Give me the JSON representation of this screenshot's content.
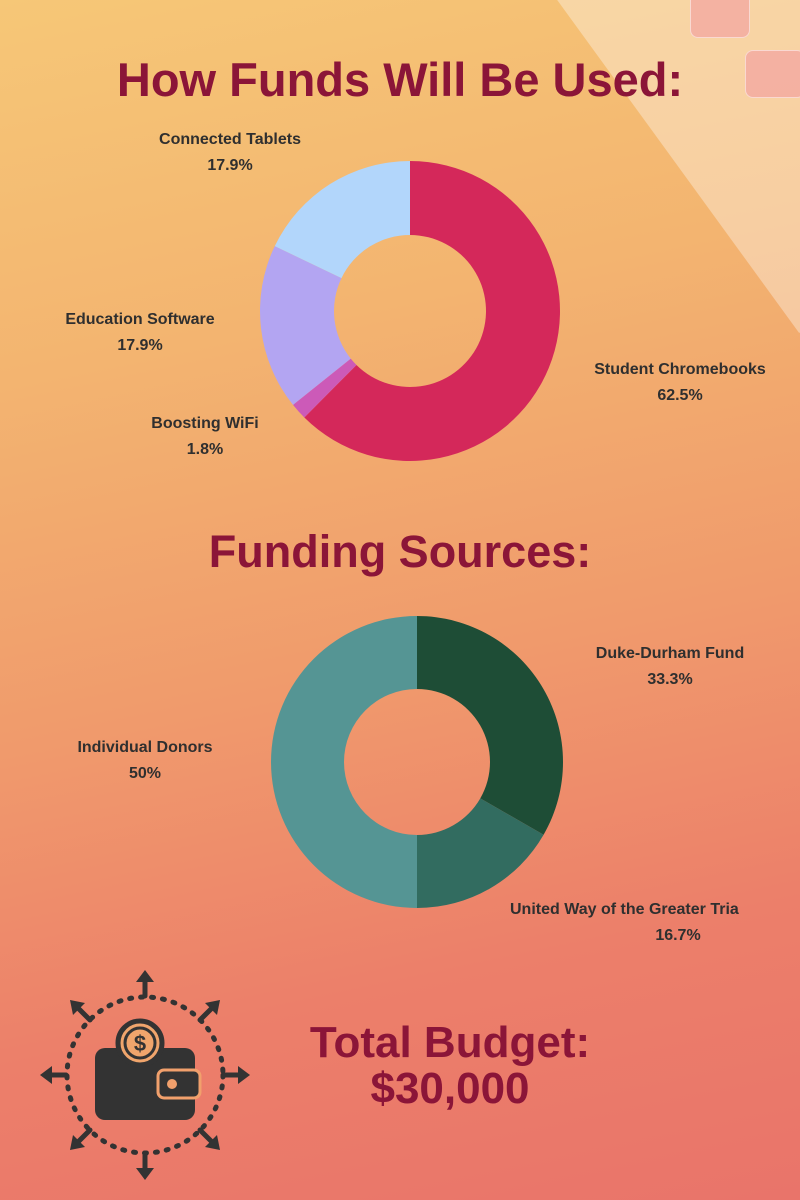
{
  "funds_title": "How Funds Will Be Used:",
  "sources_title": "Funding Sources:",
  "total": {
    "label": "Total Budget:",
    "amount": "$30,000"
  },
  "colors": {
    "title": "#8b1538",
    "text": "#2f2f2f"
  },
  "icon": "wallet-money-icon",
  "chart_data": [
    {
      "type": "pie",
      "style": "donut",
      "slices": [
        {
          "label": "Student Chromebooks",
          "value": 62.5,
          "display": "62.5%",
          "color": "#d4285a"
        },
        {
          "label": "Boosting WiFi",
          "value": 1.8,
          "display": "1.8%",
          "color": "#cc5ab8"
        },
        {
          "label": "Education Software",
          "value": 17.9,
          "display": "17.9%",
          "color": "#b3a5f2"
        },
        {
          "label": "Connected Tablets",
          "value": 17.9,
          "display": "17.9%",
          "color": "#b2d6fb"
        }
      ]
    },
    {
      "type": "pie",
      "style": "donut",
      "slices": [
        {
          "label": "Duke-Durham Fund",
          "value": 33.3,
          "display": "33.3%",
          "color": "#1e4d36"
        },
        {
          "label": "United Way of the Greater Tria",
          "value": 16.7,
          "display": "16.7%",
          "color": "#326c60"
        },
        {
          "label": "Individual Donors",
          "value": 50,
          "display": "50%",
          "color": "#559594"
        }
      ]
    }
  ]
}
